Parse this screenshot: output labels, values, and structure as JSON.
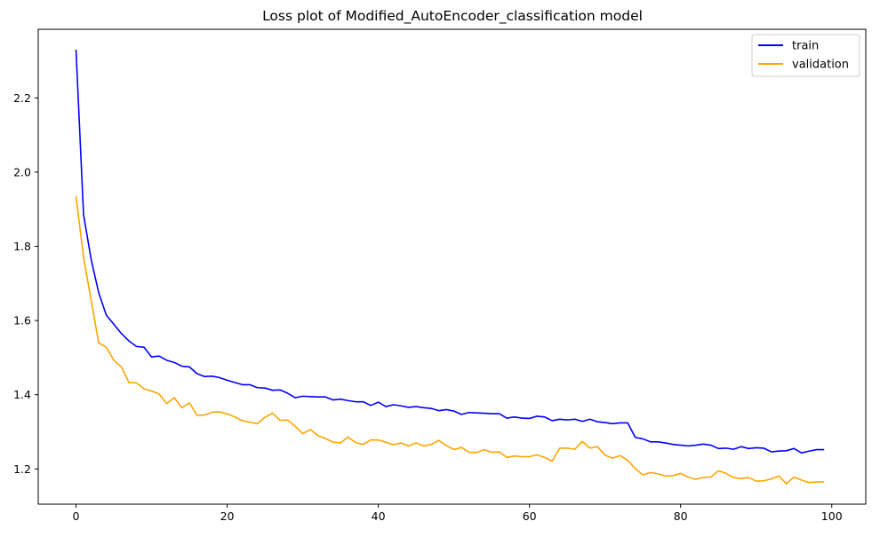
{
  "chart_data": {
    "type": "line",
    "title": "Loss plot of Modified_AutoEncoder_classification model",
    "xlabel": "",
    "ylabel": "",
    "xlim": [
      -5,
      104.5
    ],
    "ylim": [
      1.105,
      2.385
    ],
    "xticks": [
      0,
      20,
      40,
      60,
      80,
      100
    ],
    "yticks": [
      1.2,
      1.4,
      1.6,
      1.8,
      2.0,
      2.2
    ],
    "ytick_labels": [
      "1.2",
      "1.4",
      "1.6",
      "1.8",
      "2.0",
      "2.2"
    ],
    "grid": false,
    "legend_position": "top-right",
    "series": [
      {
        "name": "train",
        "color": "#0000ff",
        "values": [
          2.33,
          1.885,
          1.765,
          1.675,
          1.615,
          1.59,
          1.565,
          1.545,
          1.53,
          1.528,
          1.502,
          1.504,
          1.493,
          1.487,
          1.477,
          1.475,
          1.457,
          1.449,
          1.45,
          1.446,
          1.439,
          1.433,
          1.427,
          1.427,
          1.419,
          1.418,
          1.412,
          1.413,
          1.404,
          1.392,
          1.396,
          1.395,
          1.394,
          1.394,
          1.386,
          1.388,
          1.384,
          1.381,
          1.381,
          1.371,
          1.38,
          1.368,
          1.373,
          1.37,
          1.366,
          1.368,
          1.365,
          1.363,
          1.357,
          1.36,
          1.356,
          1.347,
          1.352,
          1.351,
          1.35,
          1.349,
          1.349,
          1.337,
          1.34,
          1.337,
          1.336,
          1.342,
          1.34,
          1.33,
          1.334,
          1.332,
          1.334,
          1.328,
          1.334,
          1.327,
          1.325,
          1.322,
          1.324,
          1.324,
          1.285,
          1.281,
          1.273,
          1.273,
          1.27,
          1.266,
          1.264,
          1.262,
          1.264,
          1.267,
          1.264,
          1.255,
          1.256,
          1.253,
          1.26,
          1.255,
          1.257,
          1.256,
          1.246,
          1.248,
          1.249,
          1.255,
          1.243,
          1.248,
          1.252,
          1.252
        ]
      },
      {
        "name": "validation",
        "color": "#ffa500",
        "values": [
          1.935,
          1.77,
          1.655,
          1.54,
          1.528,
          1.493,
          1.475,
          1.433,
          1.432,
          1.416,
          1.41,
          1.402,
          1.376,
          1.392,
          1.365,
          1.378,
          1.345,
          1.345,
          1.353,
          1.354,
          1.348,
          1.34,
          1.33,
          1.326,
          1.322,
          1.339,
          1.35,
          1.331,
          1.332,
          1.315,
          1.295,
          1.306,
          1.29,
          1.282,
          1.272,
          1.27,
          1.286,
          1.271,
          1.266,
          1.278,
          1.278,
          1.272,
          1.265,
          1.27,
          1.262,
          1.27,
          1.262,
          1.266,
          1.277,
          1.263,
          1.252,
          1.258,
          1.245,
          1.244,
          1.252,
          1.245,
          1.246,
          1.231,
          1.235,
          1.233,
          1.233,
          1.238,
          1.231,
          1.221,
          1.256,
          1.256,
          1.253,
          1.274,
          1.256,
          1.26,
          1.237,
          1.229,
          1.236,
          1.223,
          1.201,
          1.184,
          1.19,
          1.187,
          1.181,
          1.182,
          1.188,
          1.178,
          1.172,
          1.177,
          1.178,
          1.195,
          1.188,
          1.177,
          1.174,
          1.177,
          1.167,
          1.168,
          1.173,
          1.181,
          1.16,
          1.178,
          1.17,
          1.163,
          1.165,
          1.165
        ]
      }
    ]
  }
}
